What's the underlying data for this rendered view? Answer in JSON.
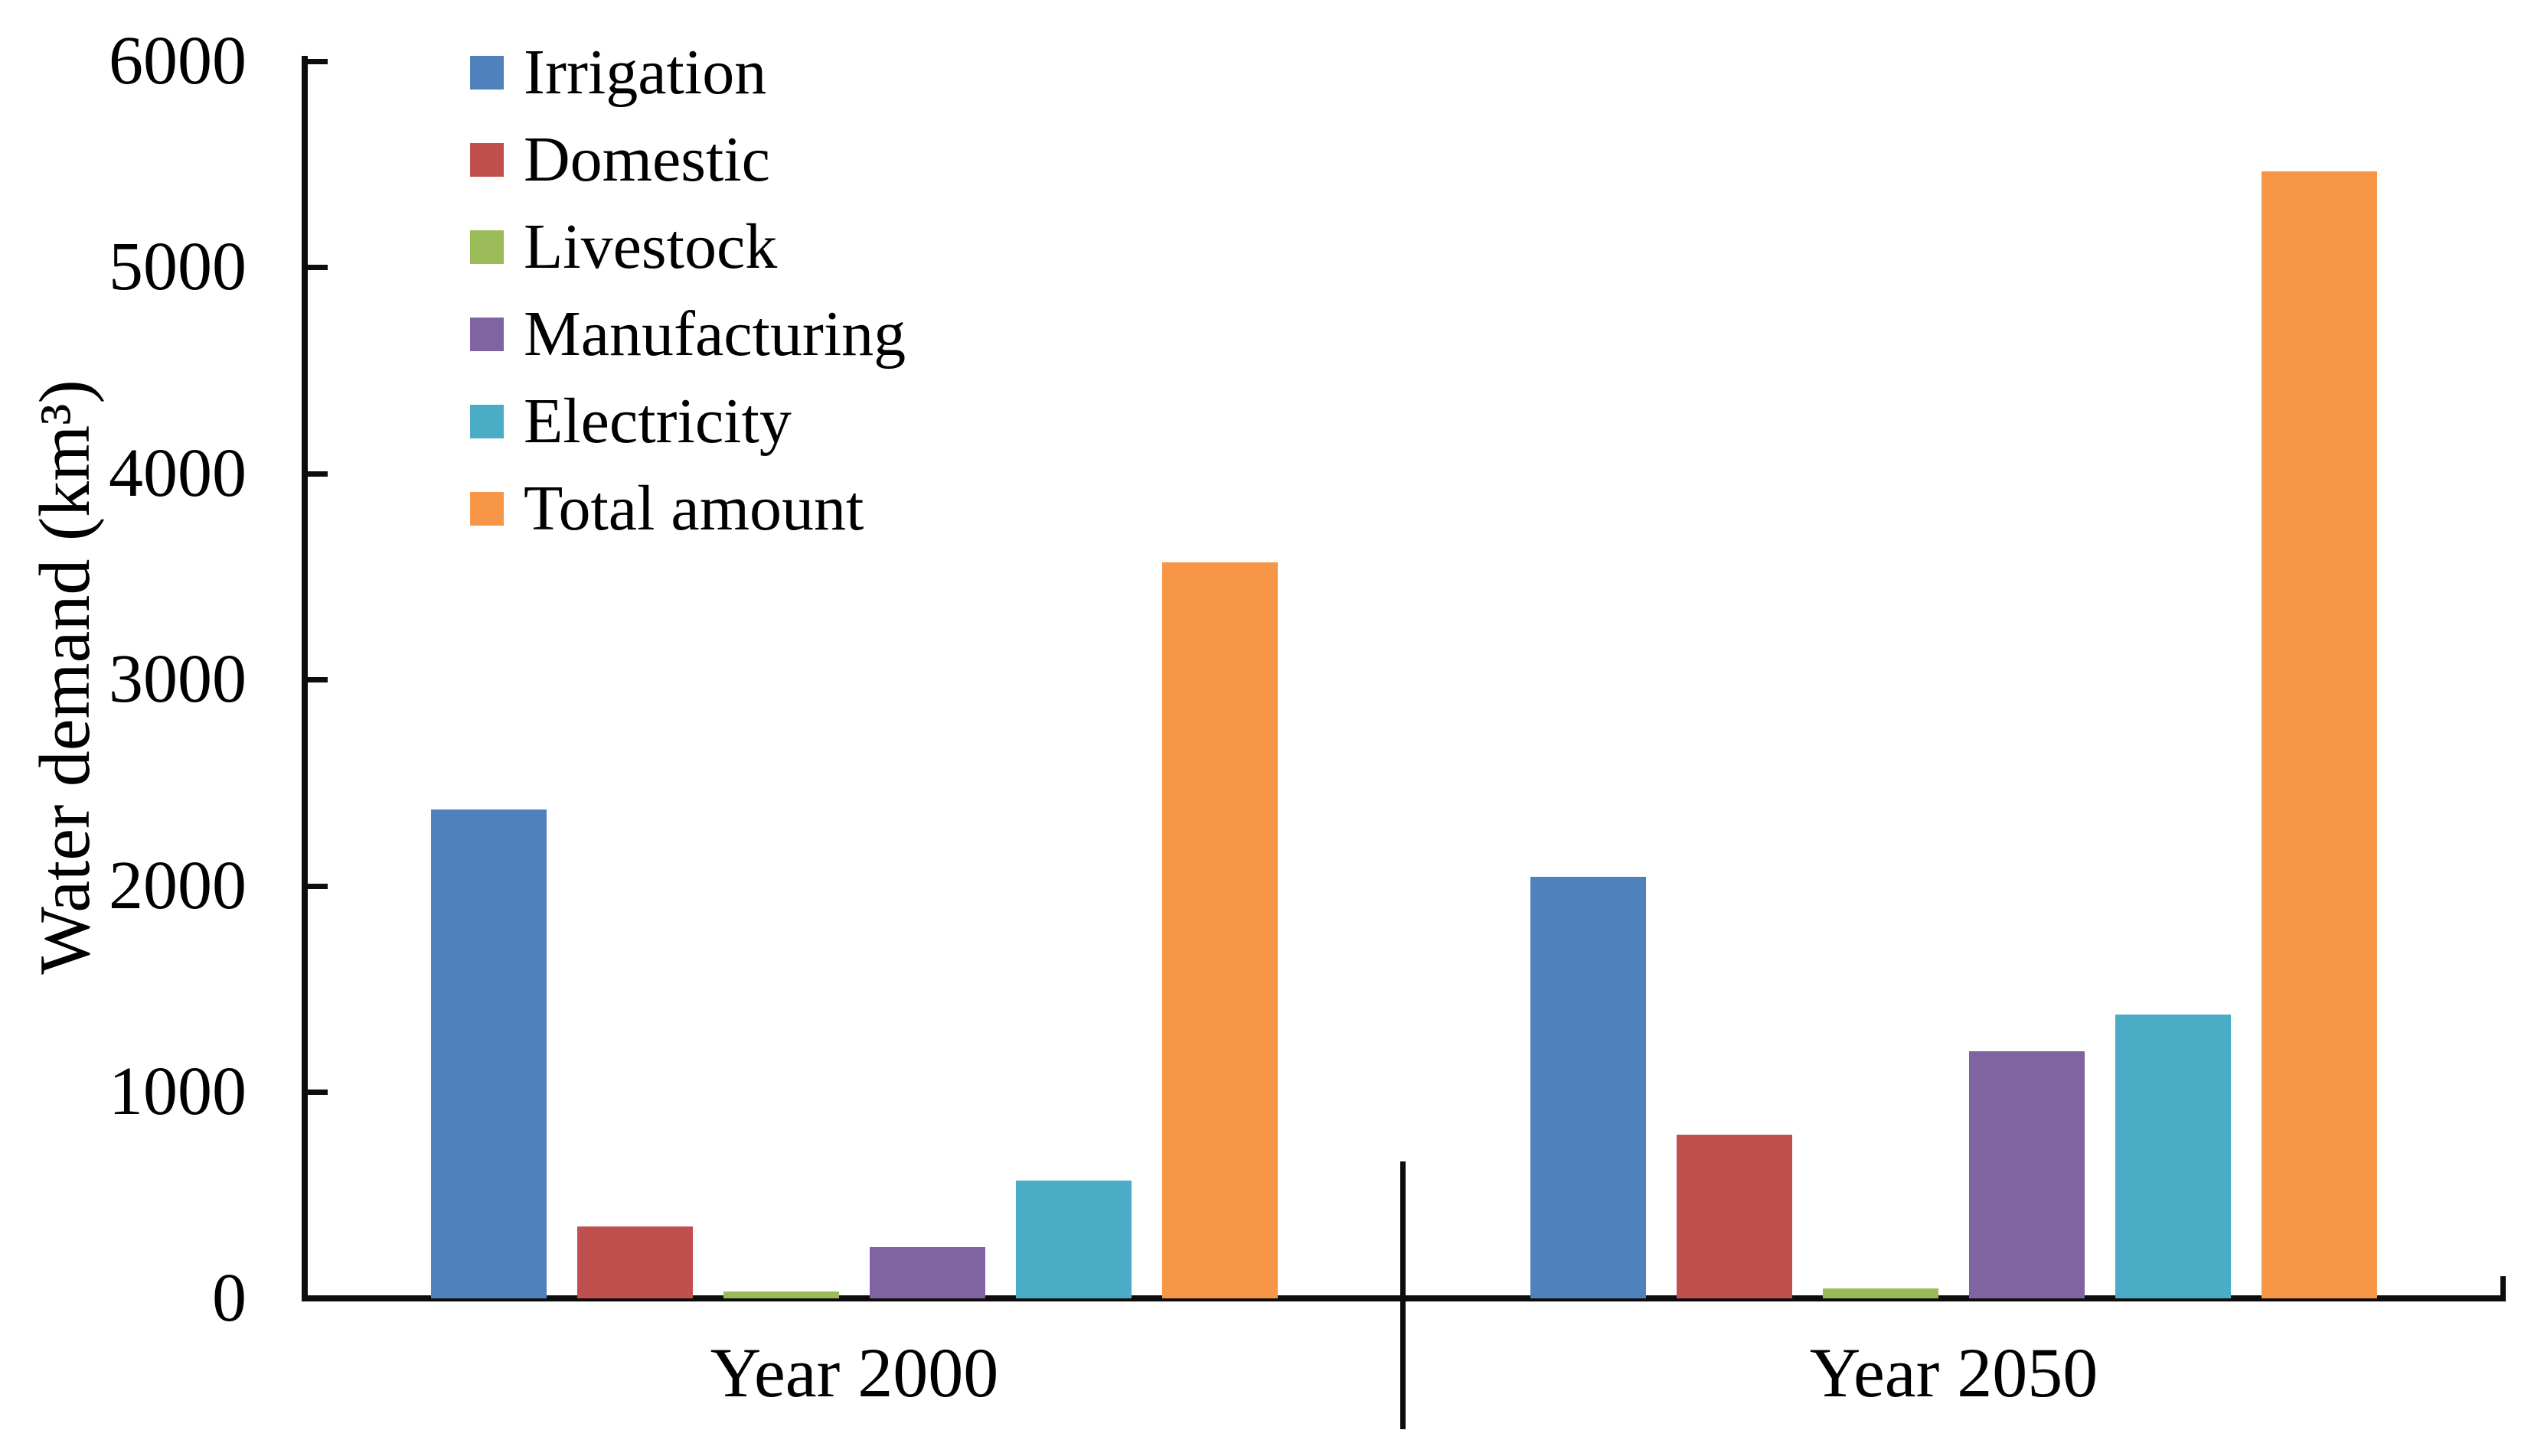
{
  "chart_data": {
    "type": "bar",
    "title": "",
    "xlabel": "",
    "ylabel": "Water demand (km³)",
    "ylim": [
      0,
      6000
    ],
    "yticks": [
      0,
      1000,
      2000,
      3000,
      4000,
      5000,
      6000
    ],
    "ytick_labels": [
      "0",
      "1000",
      "2000",
      "3000",
      "4000",
      "5000",
      "6000"
    ],
    "grid": false,
    "legend_position": "upper-left-inside",
    "categories": [
      "Year 2000",
      "Year 2050"
    ],
    "series": [
      {
        "name": "Irrigation",
        "color": "#4F81BD",
        "values": [
          2370,
          2045
        ]
      },
      {
        "name": "Domestic",
        "color": "#C0504D",
        "values": [
          350,
          795
        ]
      },
      {
        "name": "Livestock",
        "color": "#9BBB59",
        "values": [
          35,
          50
        ]
      },
      {
        "name": "Manufacturing",
        "color": "#8064A2",
        "values": [
          250,
          1200
        ]
      },
      {
        "name": "Electricity",
        "color": "#4BACC6",
        "values": [
          570,
          1375
        ]
      },
      {
        "name": "Total amount",
        "color": "#F79646",
        "values": [
          3570,
          5465
        ]
      }
    ],
    "axis_color": "#0d0d0d",
    "background_color": "#ffffff"
  }
}
